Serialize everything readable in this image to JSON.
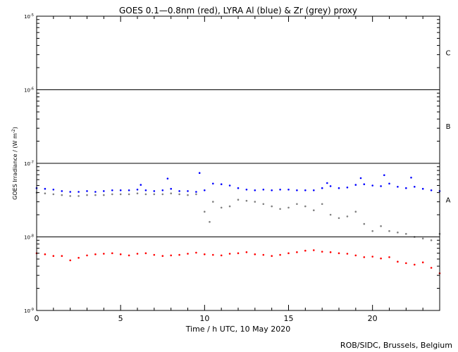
{
  "chart_data": {
    "type": "scatter",
    "title": "GOES 0.1—0.8nm (red), LYRA Al (blue) & Zr (grey) proxy",
    "xlabel": "Time / h UTC, 10 May 2020",
    "ylabel_main": "GOES Irradiance / (W m",
    "ylabel_exp": "-2",
    "ylabel_close": ")",
    "footer": "ROB/SIDC, Brussels, Belgium",
    "xlim": [
      0,
      24
    ],
    "ylim": [
      1e-09,
      1e-05
    ],
    "yscale": "log",
    "x_ticks": [
      0,
      5,
      10,
      15,
      20
    ],
    "x_tick_labels": [
      "0",
      "5",
      "10",
      "15",
      "20"
    ],
    "y_ticks": [
      1e-09,
      1e-08,
      1e-07,
      1e-06,
      1e-05
    ],
    "y_tick_labels": [
      {
        "base": "10",
        "exp": "-9"
      },
      {
        "base": "10",
        "exp": "-8"
      },
      {
        "base": "10",
        "exp": "-7"
      },
      {
        "base": "10",
        "exp": "-6"
      },
      {
        "base": "10",
        "exp": "-5"
      }
    ],
    "flare_class_lines": [
      1e-08,
      1e-07,
      1e-06
    ],
    "flare_classes": [
      {
        "label": "A",
        "value": 3.2e-08
      },
      {
        "label": "B",
        "value": 3.2e-07
      },
      {
        "label": "C",
        "value": 3.2e-06
      }
    ],
    "grid": false,
    "series": [
      {
        "color": "#0000ff",
        "x": [
          0,
          0.5,
          1,
          1.5,
          2,
          2.5,
          3,
          3.5,
          4,
          4.5,
          5,
          5.5,
          6,
          6.2,
          6.5,
          7,
          7.5,
          7.8,
          8,
          8.5,
          9,
          9.5,
          9.7,
          10,
          10.5,
          11,
          11.5,
          12,
          12.5,
          13,
          13.5,
          14,
          14.5,
          15,
          15.5,
          16,
          16.5,
          17,
          17.3,
          17.5,
          18,
          18.5,
          19,
          19.3,
          19.5,
          20,
          20.5,
          20.7,
          21,
          21.5,
          22,
          22.3,
          22.5,
          23,
          23.5,
          24
        ],
        "y": [
          4.6e-08,
          4.5e-08,
          4.4e-08,
          4.2e-08,
          4.1e-08,
          4.1e-08,
          4.2e-08,
          4.1e-08,
          4.2e-08,
          4.3e-08,
          4.3e-08,
          4.3e-08,
          4.4e-08,
          5.1e-08,
          4.3e-08,
          4.2e-08,
          4.3e-08,
          6.2e-08,
          4.5e-08,
          4.2e-08,
          4.2e-08,
          4.1e-08,
          7.4e-08,
          4.3e-08,
          5.3e-08,
          5.2e-08,
          5e-08,
          4.6e-08,
          4.4e-08,
          4.3e-08,
          4.4e-08,
          4.3e-08,
          4.4e-08,
          4.4e-08,
          4.3e-08,
          4.3e-08,
          4.3e-08,
          4.6e-08,
          5.4e-08,
          4.9e-08,
          4.6e-08,
          4.7e-08,
          5.1e-08,
          6.3e-08,
          5.2e-08,
          5e-08,
          4.9e-08,
          6.9e-08,
          5.3e-08,
          4.8e-08,
          4.6e-08,
          6.4e-08,
          4.8e-08,
          4.5e-08,
          4.3e-08,
          4.2e-08
        ]
      },
      {
        "color": "#808080",
        "x": [
          0,
          0.5,
          1,
          1.5,
          2,
          2.5,
          3,
          3.5,
          4,
          4.5,
          5,
          5.5,
          6,
          6.5,
          7,
          7.5,
          8,
          8.5,
          9,
          9.5,
          10,
          10.3,
          10.5,
          11,
          11.5,
          12,
          12.5,
          13,
          13.5,
          14,
          14.5,
          15,
          15.5,
          16,
          16.5,
          17,
          17.5,
          18,
          18.5,
          19,
          19.5,
          20,
          20.5,
          21,
          21.5,
          22,
          22.5,
          23,
          23.5,
          24
        ],
        "y": [
          4e-08,
          3.9e-08,
          3.8e-08,
          3.7e-08,
          3.6e-08,
          3.6e-08,
          3.7e-08,
          3.7e-08,
          3.7e-08,
          3.8e-08,
          3.8e-08,
          3.8e-08,
          3.9e-08,
          3.8e-08,
          3.8e-08,
          3.8e-08,
          3.9e-08,
          3.8e-08,
          3.7e-08,
          3.8e-08,
          2.2e-08,
          1.6e-08,
          3e-08,
          2.5e-08,
          2.6e-08,
          3.2e-08,
          3.1e-08,
          3e-08,
          2.8e-08,
          2.6e-08,
          2.4e-08,
          2.5e-08,
          2.8e-08,
          2.6e-08,
          2.3e-08,
          2.8e-08,
          2e-08,
          1.8e-08,
          1.9e-08,
          2.2e-08,
          1.5e-08,
          1.2e-08,
          1.4e-08,
          1.2e-08,
          1.15e-08,
          1.1e-08,
          1e-08,
          9.5e-09,
          9e-09,
          1.1e-08
        ]
      },
      {
        "color": "#ff0000",
        "x": [
          0,
          0.5,
          1,
          1.5,
          2,
          2.5,
          3,
          3.5,
          4,
          4.5,
          5,
          5.5,
          6,
          6.5,
          7,
          7.5,
          8,
          8.5,
          9,
          9.5,
          10,
          10.5,
          11,
          11.5,
          12,
          12.5,
          13,
          13.5,
          14,
          14.5,
          15,
          15.5,
          16,
          16.5,
          17,
          17.5,
          18,
          18.5,
          19,
          19.5,
          20,
          20.5,
          21,
          21.5,
          22,
          22.5,
          23,
          23.5,
          24
        ],
        "y": [
          6e-09,
          5.8e-09,
          5.5e-09,
          5.5e-09,
          4.8e-09,
          5.2e-09,
          5.6e-09,
          5.8e-09,
          5.9e-09,
          6e-09,
          5.8e-09,
          5.6e-09,
          5.9e-09,
          6e-09,
          5.7e-09,
          5.5e-09,
          5.6e-09,
          5.7e-09,
          5.9e-09,
          6.1e-09,
          5.8e-09,
          5.7e-09,
          5.6e-09,
          5.9e-09,
          6e-09,
          6.2e-09,
          5.8e-09,
          5.7e-09,
          5.5e-09,
          5.7e-09,
          6e-09,
          6.2e-09,
          6.5e-09,
          6.6e-09,
          6.3e-09,
          6.2e-09,
          6e-09,
          5.9e-09,
          5.6e-09,
          5.3e-09,
          5.4e-09,
          5.1e-09,
          5.3e-09,
          4.6e-09,
          4.4e-09,
          4.2e-09,
          4.5e-09,
          3.8e-09,
          3.2e-09
        ]
      }
    ]
  }
}
